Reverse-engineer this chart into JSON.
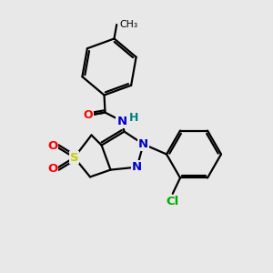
{
  "background_color": "#e8e8e8",
  "bond_color": "#000000",
  "atom_colors": {
    "N": "#0000cc",
    "O": "#ff0000",
    "S": "#cccc00",
    "Cl": "#00aa00",
    "H": "#008080",
    "C": "#000000"
  },
  "lw": 1.6
}
